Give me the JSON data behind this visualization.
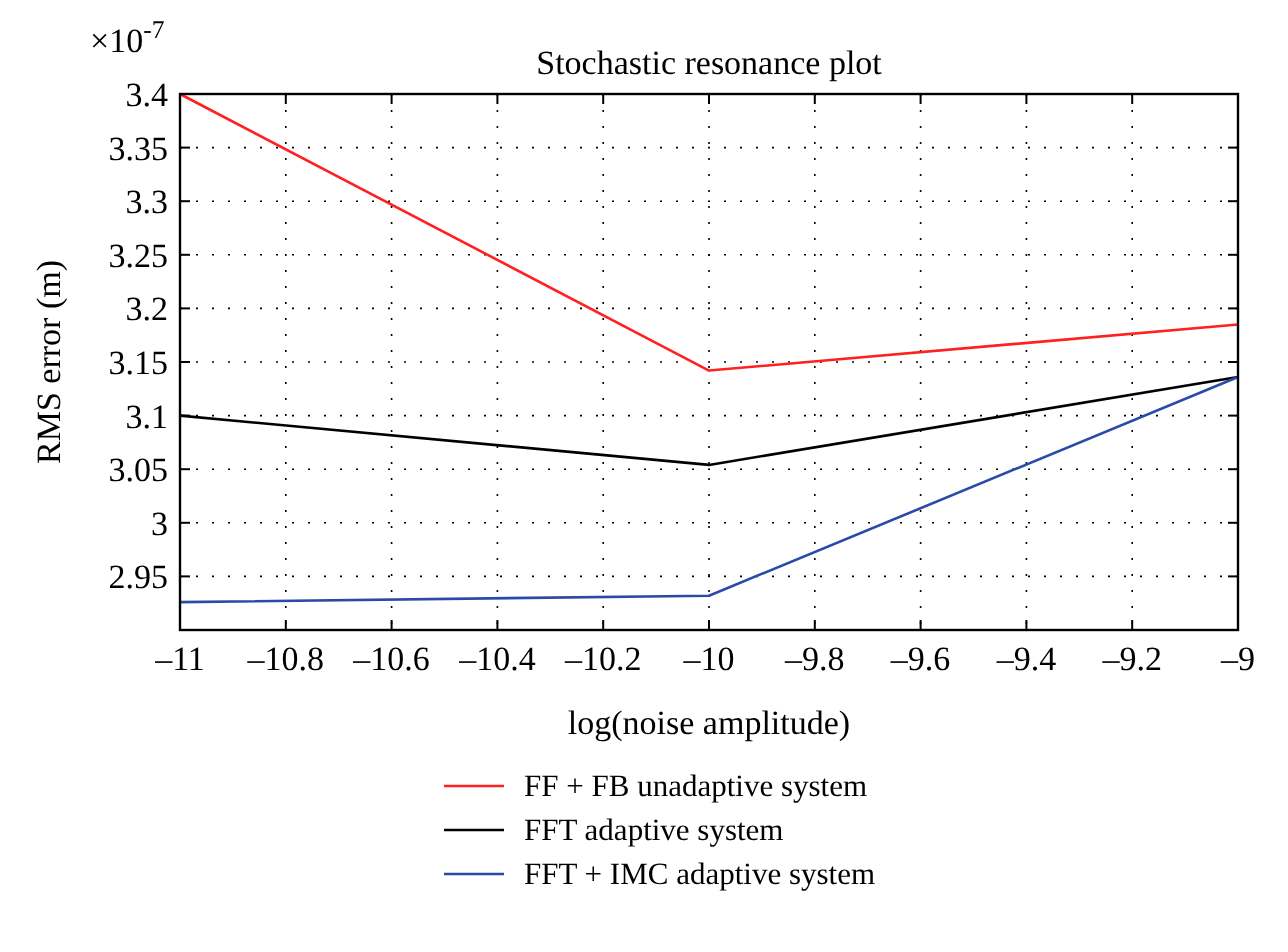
{
  "chart_data": {
    "type": "line",
    "title": "Stochastic resonance plot",
    "xlabel": "log(noise amplitude)",
    "ylabel": "RMS error (m)",
    "annotations": [
      "×10$^{-7}$"
    ],
    "x": [
      -11,
      -10,
      -9
    ],
    "series": [
      {
        "name": "FF + FB unadaptive system",
        "color": "#ff2020",
        "values": [
          3.4,
          3.142,
          3.185
        ]
      },
      {
        "name": "FFT adaptive system",
        "color": "#000000",
        "values": [
          3.1,
          3.054,
          3.136
        ]
      },
      {
        "name": "FFT + IMC adaptive system",
        "color": "#2a4aa8",
        "values": [
          2.926,
          2.932,
          3.136
        ]
      }
    ],
    "xlim": [
      -11,
      -9
    ],
    "xticks": [
      {
        "value": -11,
        "label": "–11"
      },
      {
        "value": -10.8,
        "label": "–10.8"
      },
      {
        "value": -10.6,
        "label": "–10.6"
      },
      {
        "value": -10.4,
        "label": "–10.4"
      },
      {
        "value": -10.2,
        "label": "–10.2"
      },
      {
        "value": -10,
        "label": "–10"
      },
      {
        "value": -9.8,
        "label": "–9.8"
      },
      {
        "value": -9.6,
        "label": "–9.6"
      },
      {
        "value": -9.4,
        "label": "–9.4"
      },
      {
        "value": -9.2,
        "label": "–9.2"
      },
      {
        "value": -9,
        "label": "–9"
      }
    ],
    "ylim": [
      2.9,
      3.4
    ],
    "yticks": [
      2.95,
      3,
      3.05,
      3.1,
      3.15,
      3.2,
      3.25,
      3.3,
      3.35,
      3.4
    ],
    "grid": true,
    "legend": "bottom",
    "line_style": "solid"
  }
}
